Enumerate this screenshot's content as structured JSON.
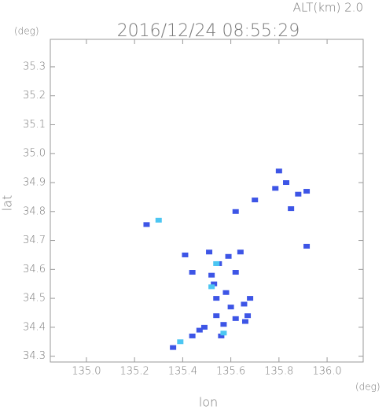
{
  "chart_data": {
    "type": "scatter",
    "title": "2016/12/24 08:55:29",
    "subtitle": "ALT(km) 2.0",
    "x_label": "lon",
    "y_label": "lat",
    "x_unit": "(deg)",
    "y_unit": "(deg)",
    "xlim": [
      134.85,
      136.15
    ],
    "ylim": [
      34.28,
      35.395
    ],
    "xticks": [
      {
        "value": 135.0,
        "label": "135.0"
      },
      135.2,
      135.4,
      135.6,
      135.8,
      {
        "value": 136.0,
        "label": "136.0"
      }
    ],
    "yticks": [
      35.3,
      35.2,
      35.1,
      {
        "value": 35.0,
        "label": "35.0"
      },
      34.9,
      34.8,
      34.7,
      34.6,
      34.5,
      34.4,
      34.3
    ],
    "series": [
      {
        "color": "#3d55e6",
        "x": [
          135.8,
          135.83,
          135.785,
          135.88,
          135.915,
          135.7,
          135.62,
          135.85,
          135.25,
          135.915,
          135.41,
          135.44,
          135.51,
          135.59,
          135.64,
          135.52,
          135.62,
          135.54,
          135.6,
          135.655,
          135.54,
          135.62,
          135.67,
          135.49,
          135.44,
          135.36,
          135.56,
          135.55,
          135.58,
          135.66,
          135.68,
          135.53,
          135.57,
          135.47
        ],
        "y": [
          34.94,
          34.9,
          34.88,
          34.86,
          34.87,
          34.84,
          34.8,
          34.81,
          34.755,
          34.68,
          34.65,
          34.59,
          34.66,
          34.645,
          34.66,
          34.58,
          34.59,
          34.5,
          34.47,
          34.48,
          34.44,
          34.43,
          34.44,
          34.4,
          34.37,
          34.33,
          34.37,
          34.62,
          34.52,
          34.42,
          34.5,
          34.55,
          34.41,
          34.39
        ]
      },
      {
        "color": "#4cc6f2",
        "x": [
          135.3,
          135.52,
          135.39,
          135.57,
          135.54
        ],
        "y": [
          34.77,
          34.54,
          34.35,
          34.38,
          34.62
        ]
      }
    ]
  }
}
